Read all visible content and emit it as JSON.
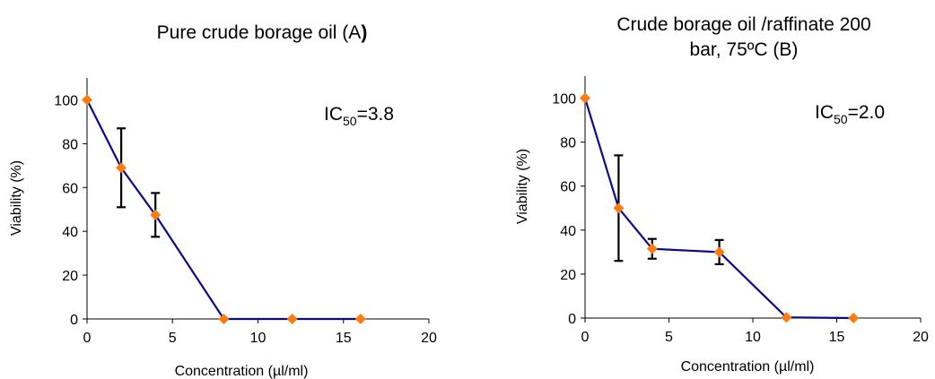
{
  "chart_data": [
    {
      "type": "line",
      "title": [
        "Pure crude borage oil (A",
        ")"
      ],
      "xlabel": "Concentration (µl/ml)",
      "ylabel": "Viability (%)",
      "xlim": [
        0,
        20
      ],
      "ylim": [
        0,
        110
      ],
      "xticks": [
        0,
        5,
        10,
        15,
        20
      ],
      "yticks": [
        0,
        20,
        40,
        60,
        80,
        100
      ],
      "annotation": {
        "main": "IC",
        "sub": "50",
        "value": "=3.8"
      },
      "series": [
        {
          "x": [
            0,
            2,
            4,
            8,
            12,
            16
          ],
          "y": [
            100,
            69,
            47.5,
            0,
            0,
            0
          ],
          "err_low": [
            null,
            51,
            37.5,
            null,
            null,
            null
          ],
          "err_high": [
            null,
            87,
            57.5,
            null,
            null,
            null
          ],
          "color": "#0a0a8c",
          "marker_color": "#ff7a0f"
        }
      ]
    },
    {
      "type": "line",
      "title": [
        "Crude borage oil /raffinate 200",
        "bar, 75ºC (B)"
      ],
      "xlabel": "Concentration (µl/ml)",
      "ylabel": "Viability (%)",
      "xlim": [
        0,
        20
      ],
      "ylim": [
        0,
        110
      ],
      "xticks": [
        0,
        5,
        10,
        15,
        20
      ],
      "yticks": [
        0,
        20,
        40,
        60,
        80,
        100
      ],
      "annotation": {
        "main": "IC",
        "sub": "50",
        "value": "=2.0"
      },
      "series": [
        {
          "x": [
            0,
            2,
            4,
            8,
            12,
            16
          ],
          "y": [
            100,
            50,
            31.5,
            30,
            0.3,
            0
          ],
          "err_low": [
            null,
            26,
            27,
            24.5,
            null,
            null
          ],
          "err_high": [
            null,
            74,
            36,
            35.5,
            null,
            null
          ],
          "color": "#0a0a8c",
          "marker_color": "#ff7a0f"
        }
      ]
    }
  ]
}
